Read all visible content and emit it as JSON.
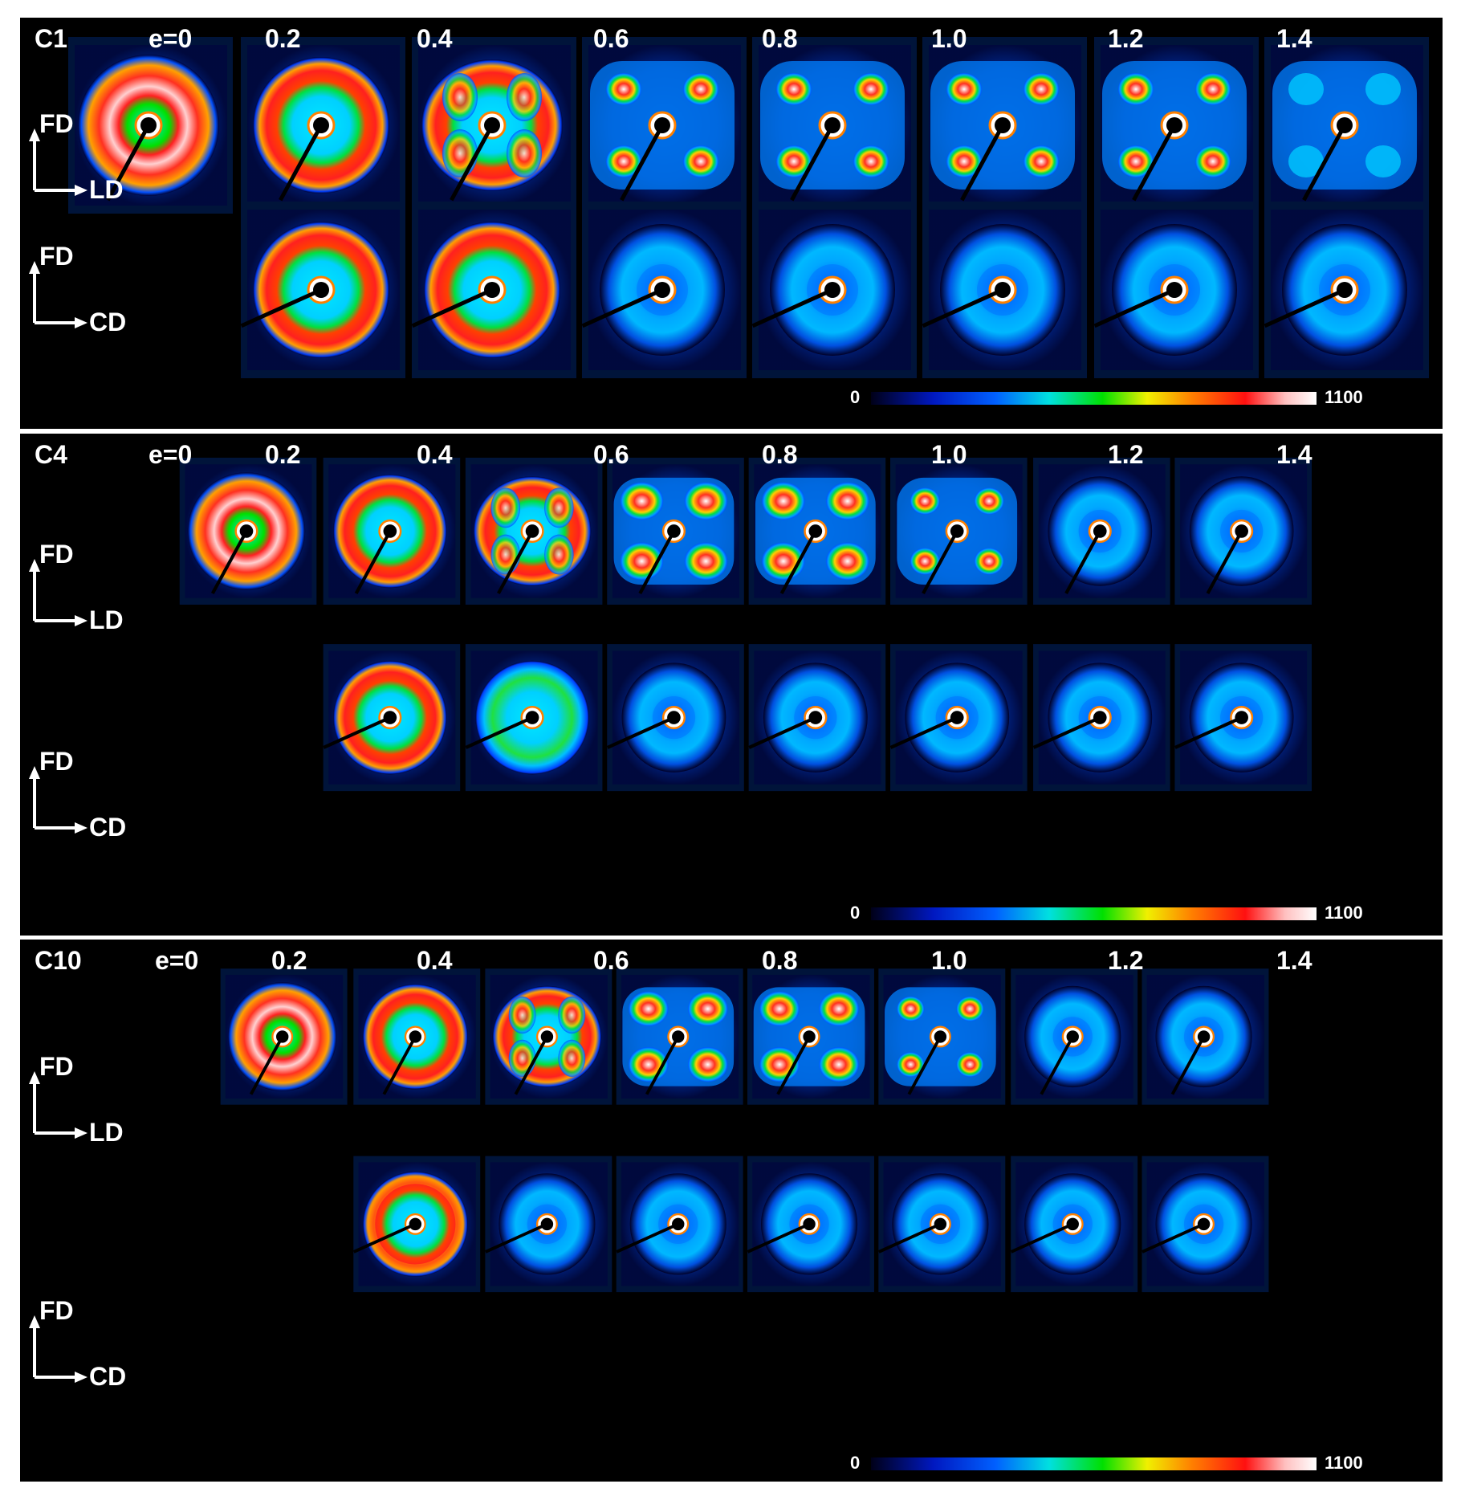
{
  "figure": {
    "strain_labels": [
      "e=0",
      "0.2",
      "0.4",
      "0.6",
      "0.8",
      "1.0",
      "1.2",
      "1.4"
    ],
    "axis_labels": {
      "vertical": "FD",
      "horizontal_top": "LD",
      "horizontal_bottom": "CD"
    },
    "colorbar": {
      "min": "0",
      "max": "1100",
      "colors": [
        "#000018",
        "#0018c0",
        "#0060ff",
        "#00e0e0",
        "#00e000",
        "#f0f000",
        "#ff8000",
        "#ff1010",
        "#ffc0c0",
        "#ffffff"
      ]
    },
    "panels": [
      {
        "sample": "C1"
      },
      {
        "sample": "C4"
      },
      {
        "sample": "C10"
      }
    ]
  }
}
